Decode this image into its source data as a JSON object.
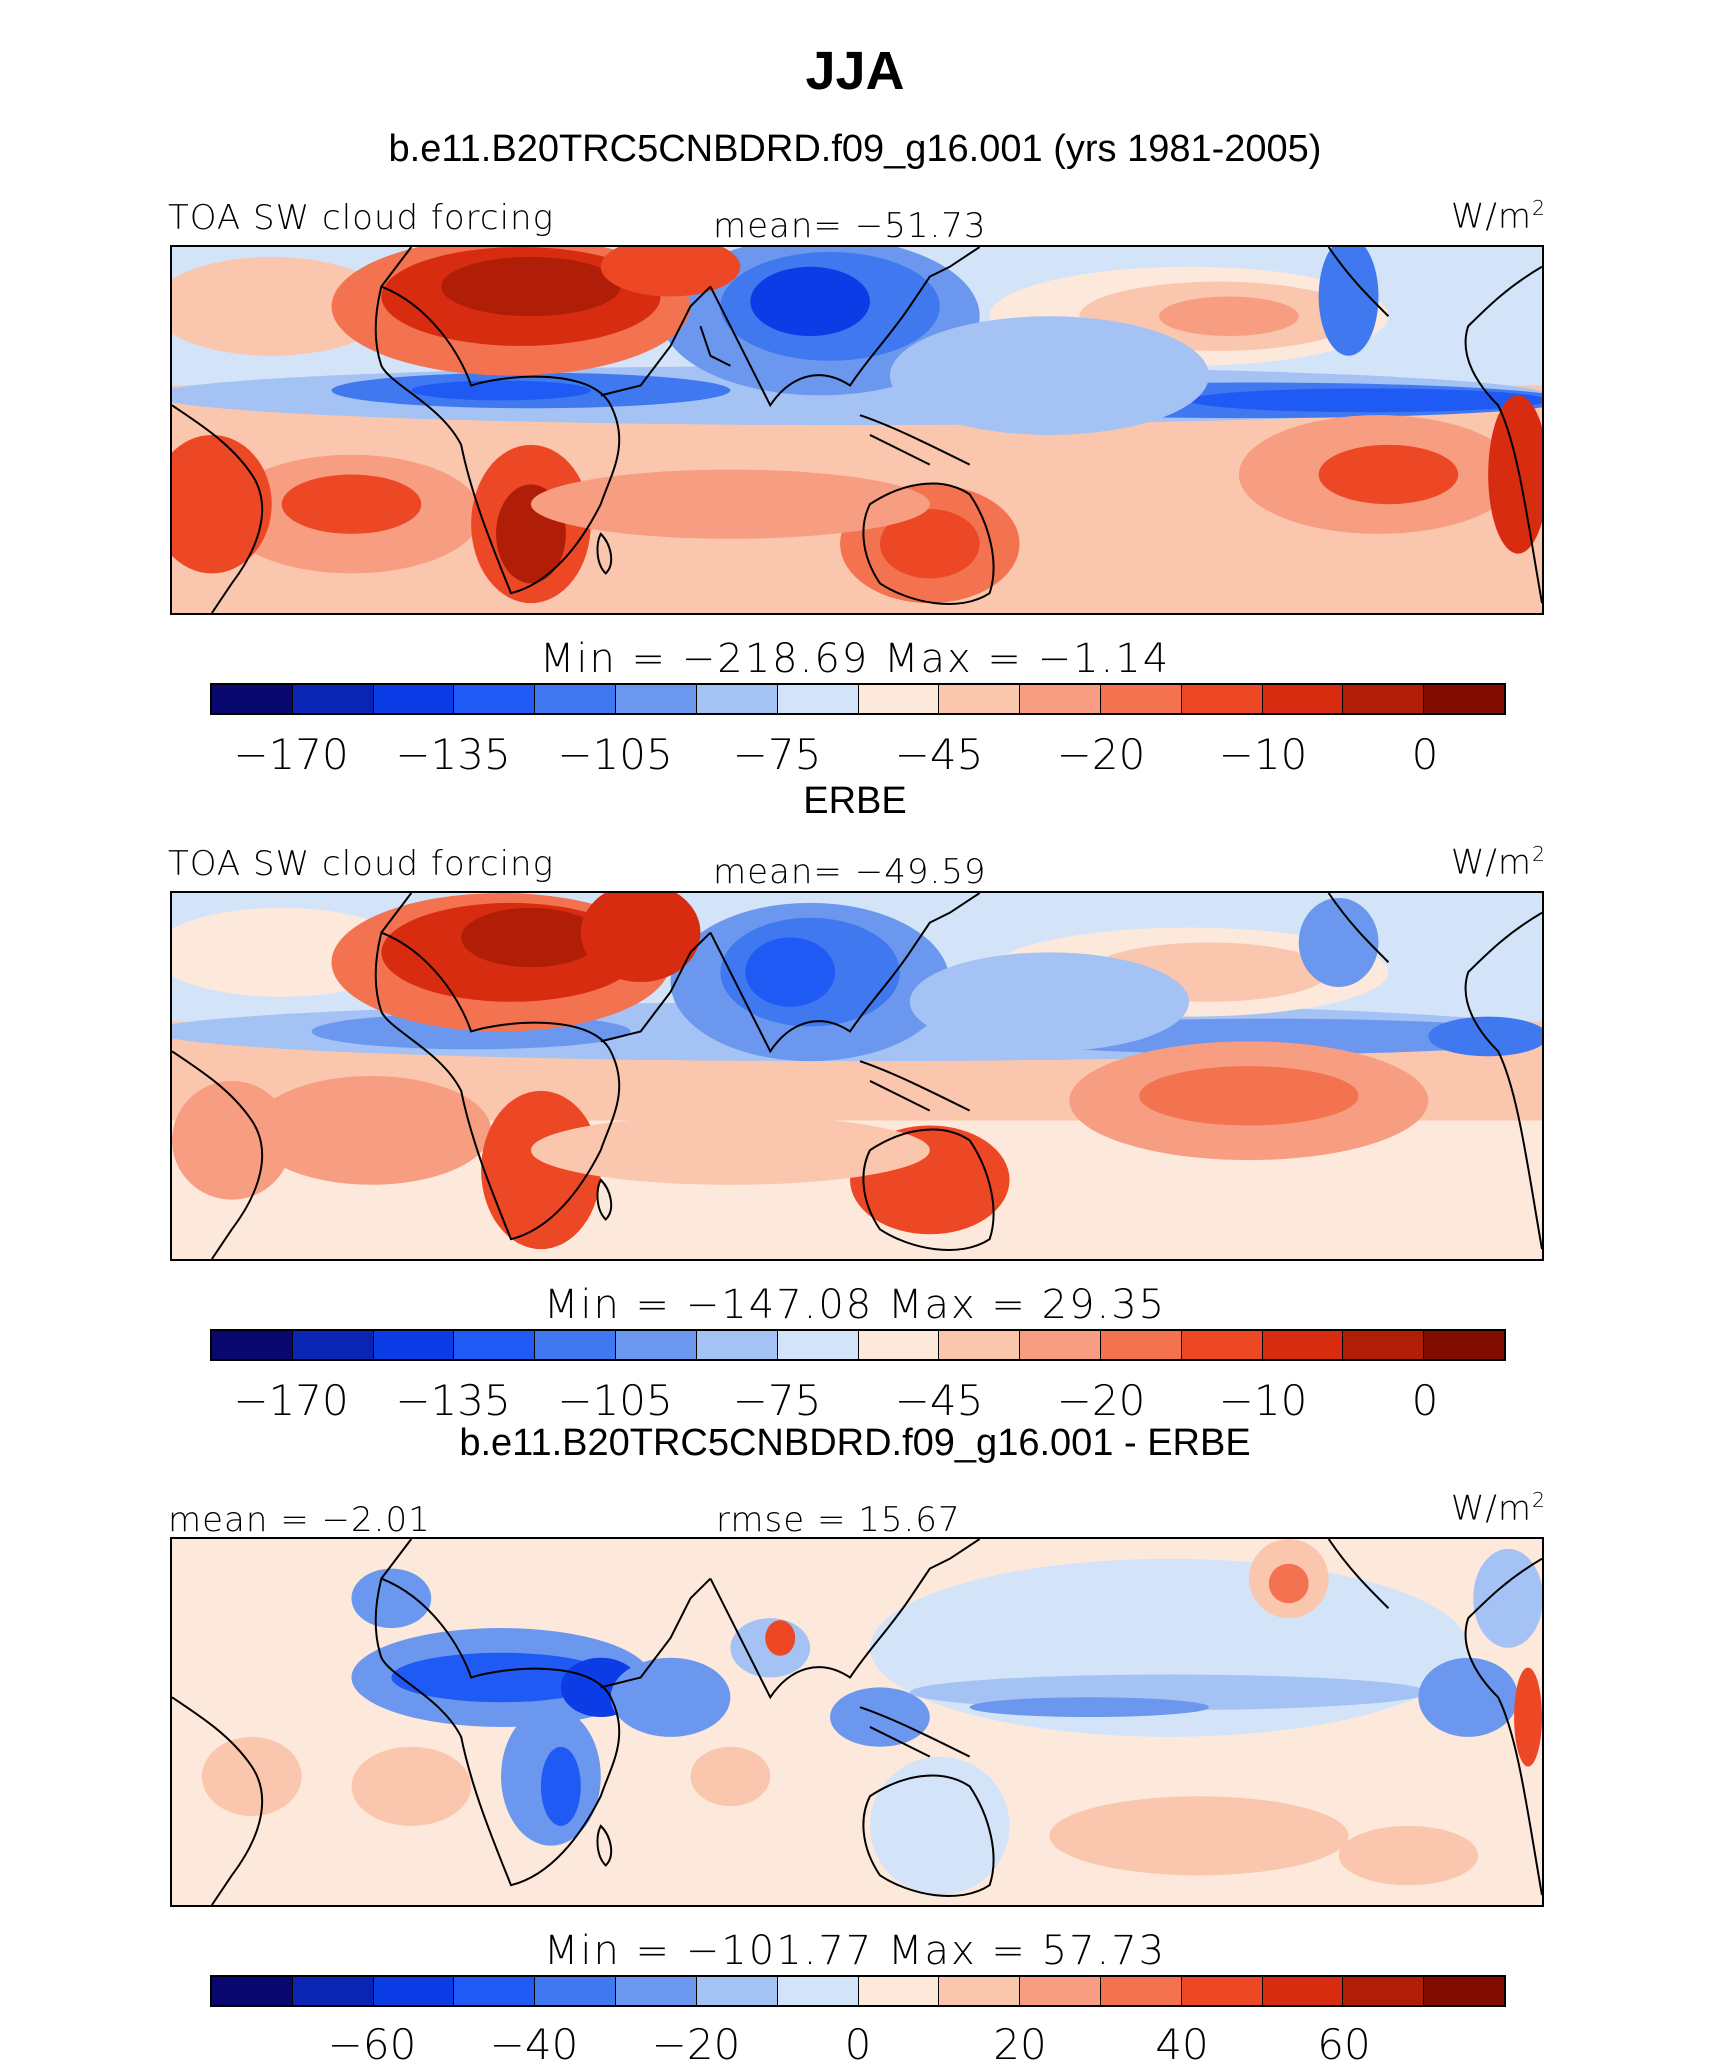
{
  "title": "JJA",
  "colors": [
    "#08086e",
    "#0a24b4",
    "#0c3ce6",
    "#1f5af5",
    "#3f78ef",
    "#6b98ee",
    "#a4c2f4",
    "#d4e4f8",
    "#fde9db",
    "#fbc6ae",
    "#f79e82",
    "#f3724f",
    "#ec4826",
    "#d82c10",
    "#b01e08",
    "#800c00"
  ],
  "panels": [
    {
      "id": "model",
      "subtitle": "b.e11.B20TRC5CNBDRD.f09_g16.001 (yrs 1981-2005)",
      "left_label": "TOA SW cloud forcing",
      "center_label": "mean= −51.73",
      "units_label": "W/m",
      "units_sup": "2",
      "minmax": "Min  =  −218.69  Max  =   −1.14",
      "ticks": [
        "−170",
        "−135",
        "−105",
        "−75",
        "−45",
        "−20",
        "−10",
        "0"
      ],
      "tick_positions": [
        1,
        3,
        5,
        7,
        9,
        11,
        13,
        15
      ]
    },
    {
      "id": "obs",
      "subtitle": "ERBE",
      "left_label": "TOA SW cloud forcing",
      "center_label": "mean= −49.59",
      "units_label": "W/m",
      "units_sup": "2",
      "minmax": "Min  =  −147.08  Max  =   29.35",
      "ticks": [
        "−170",
        "−135",
        "−105",
        "−75",
        "−45",
        "−20",
        "−10",
        "0"
      ],
      "tick_positions": [
        1,
        3,
        5,
        7,
        9,
        11,
        13,
        15
      ]
    },
    {
      "id": "diff",
      "subtitle": "b.e11.B20TRC5CNBDRD.f09_g16.001 - ERBE",
      "left_label": "mean  =   −2.01",
      "center_label": "rmse  =   15.67",
      "units_label": "W/m",
      "units_sup": "2",
      "minmax": "Min  =  −101.77  Max  =   57.73",
      "ticks": [
        "−60",
        "−40",
        "−20",
        "0",
        "20",
        "40",
        "60"
      ],
      "tick_positions": [
        2,
        4,
        6,
        8,
        10,
        12,
        14
      ]
    }
  ]
}
